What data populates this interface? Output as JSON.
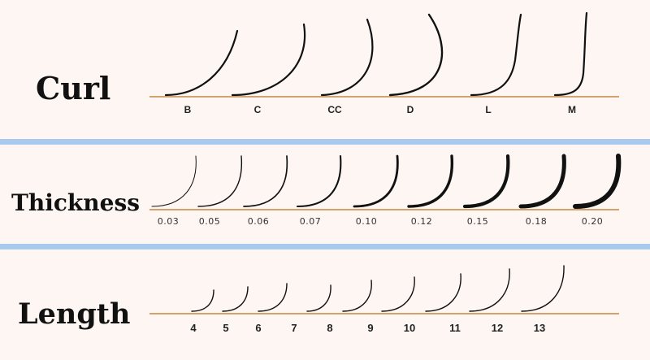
{
  "colors": {
    "background": "#fdf6f2",
    "separator": "#a9c9ee",
    "baseline": "#d4a26e",
    "lash": "#111111"
  },
  "curl": {
    "title": "Curl",
    "items": [
      {
        "label": "B",
        "icon": "lash-curl-b-icon"
      },
      {
        "label": "C",
        "icon": "lash-curl-c-icon"
      },
      {
        "label": "CC",
        "icon": "lash-curl-cc-icon"
      },
      {
        "label": "D",
        "icon": "lash-curl-d-icon"
      },
      {
        "label": "L",
        "icon": "lash-curl-l-icon"
      },
      {
        "label": "M",
        "icon": "lash-curl-m-icon"
      }
    ]
  },
  "thickness": {
    "title": "Thickness",
    "items": [
      {
        "label": "0.03",
        "value": 0.03
      },
      {
        "label": "0.05",
        "value": 0.05
      },
      {
        "label": "0.06",
        "value": 0.06
      },
      {
        "label": "0.07",
        "value": 0.07
      },
      {
        "label": "0.10",
        "value": 0.1
      },
      {
        "label": "0.12",
        "value": 0.12
      },
      {
        "label": "0.15",
        "value": 0.15
      },
      {
        "label": "0.18",
        "value": 0.18
      },
      {
        "label": "0.20",
        "value": 0.2
      }
    ]
  },
  "length": {
    "title": "Length",
    "items": [
      {
        "label": "4",
        "value": 4
      },
      {
        "label": "5",
        "value": 5
      },
      {
        "label": "6",
        "value": 6
      },
      {
        "label": "7",
        "value": 7
      },
      {
        "label": "8",
        "value": 8
      },
      {
        "label": "9",
        "value": 9
      },
      {
        "label": "10",
        "value": 10
      },
      {
        "label": "11",
        "value": 11
      },
      {
        "label": "12",
        "value": 12
      },
      {
        "label": "13",
        "value": 13
      }
    ]
  }
}
